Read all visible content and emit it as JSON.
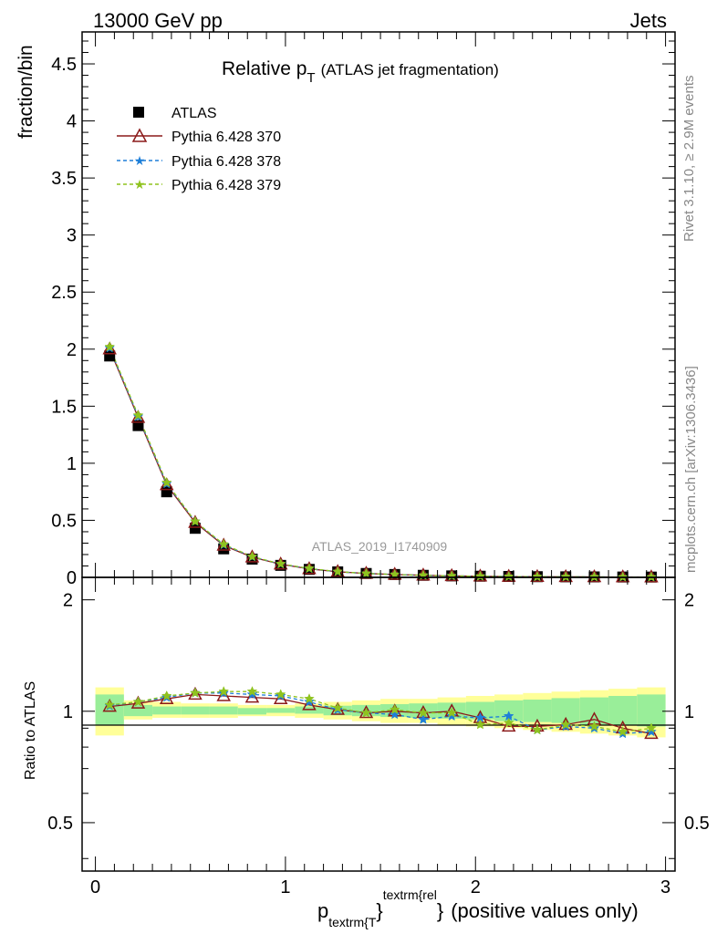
{
  "header": {
    "left": "13000 GeV pp",
    "right": "Jets"
  },
  "side_labels": {
    "rivet": "Rivet 3.1.10, ≥ 2.9M events",
    "mcplots": "mcplots.cern.ch [arXiv:1306.3436]"
  },
  "watermark": "ATLAS_2019_I1740909",
  "colors": {
    "data": "#000000",
    "mc370": "#8b1a1a",
    "mc378": "#1e7fd8",
    "mc379": "#8fc31f",
    "band_yellow": "#ffff99",
    "band_green": "#99ee99"
  },
  "chart_data": [
    {
      "type": "scatter",
      "title_main": "Relative p",
      "title_sub": "T",
      "title_rest": "(ATLAS jet fragmentation)",
      "ylabel": "fraction/bin",
      "xlim": [
        -0.07,
        3.05
      ],
      "ylim": [
        0,
        4.78
      ],
      "yticks": [
        0,
        0.5,
        1,
        1.5,
        2,
        2.5,
        3,
        3.5,
        4,
        4.5
      ],
      "ytick_labels": [
        "0",
        "0.5",
        "1",
        "1.5",
        "2",
        "2.5",
        "3",
        "3.5",
        "4",
        "4.5"
      ],
      "x": [
        0.075,
        0.225,
        0.375,
        0.525,
        0.675,
        0.825,
        0.975,
        1.125,
        1.275,
        1.425,
        1.575,
        1.725,
        1.875,
        2.025,
        2.175,
        2.325,
        2.475,
        2.625,
        2.775,
        2.925
      ],
      "legend": [
        {
          "label": "ATLAS",
          "key": "data"
        },
        {
          "label": "Pythia 6.428 370",
          "key": "mc370"
        },
        {
          "label": "Pythia 6.428 378",
          "key": "mc378"
        },
        {
          "label": "Pythia 6.428 379",
          "key": "mc379"
        }
      ],
      "series": [
        {
          "name": "ATLAS",
          "key": "data",
          "marker": "square",
          "values": [
            1.94,
            1.33,
            0.75,
            0.43,
            0.25,
            0.16,
            0.105,
            0.07,
            0.048,
            0.034,
            0.025,
            0.018,
            0.013,
            0.01,
            0.008,
            0.006,
            0.005,
            0.004,
            0.003,
            0.0025
          ]
        },
        {
          "name": "Pythia 6.428 370",
          "key": "mc370",
          "marker": "triangle",
          "dash": false,
          "values": [
            2.0,
            1.4,
            0.81,
            0.48,
            0.28,
            0.177,
            0.115,
            0.074,
            0.049,
            0.034,
            0.025,
            0.018,
            0.013,
            0.0096,
            0.0073,
            0.0055,
            0.0046,
            0.0038,
            0.0027,
            0.0022
          ]
        },
        {
          "name": "Pythia 6.428 378",
          "key": "mc378",
          "marker": "star",
          "dash": true,
          "values": [
            2.01,
            1.41,
            0.82,
            0.49,
            0.285,
            0.18,
            0.117,
            0.077,
            0.049,
            0.034,
            0.0245,
            0.0171,
            0.0126,
            0.0096,
            0.0078,
            0.0053,
            0.0045,
            0.0036,
            0.0026,
            0.0022
          ]
        },
        {
          "name": "Pythia 6.428 379",
          "key": "mc379",
          "marker": "star",
          "dash": true,
          "values": [
            2.02,
            1.42,
            0.83,
            0.49,
            0.29,
            0.182,
            0.118,
            0.078,
            0.05,
            0.034,
            0.025,
            0.0178,
            0.013,
            0.0092,
            0.0074,
            0.0053,
            0.0046,
            0.0036,
            0.0026,
            0.0023
          ]
        }
      ]
    },
    {
      "type": "line",
      "ylabel": "Ratio to ATLAS",
      "xlabel_main": "p",
      "xlabel_sub": "textrm{T",
      "xlabel_sup": "textrm{rel",
      "xlabel_brace1": "}",
      "xlabel_brace2": "}",
      "xlabel_rest": "(positive values only)",
      "xlim": [
        -0.07,
        3.05
      ],
      "ylim": [
        0.37,
        2.3
      ],
      "yscale": "log",
      "yticks": [
        0.5,
        1,
        2
      ],
      "ytick_labels": [
        "0.5",
        "1",
        "2"
      ],
      "xticks": [
        0,
        1,
        2,
        3
      ],
      "xtick_labels": [
        "0",
        "1",
        "2",
        "3"
      ],
      "bin_edges": [
        0,
        0.15,
        0.3,
        0.45,
        0.6,
        0.75,
        0.9,
        1.05,
        1.2,
        1.35,
        1.5,
        1.65,
        1.8,
        1.95,
        2.1,
        2.25,
        2.4,
        2.55,
        2.7,
        2.85,
        3.0
      ],
      "band_yellow": {
        "lo": [
          0.86,
          0.95,
          0.96,
          0.96,
          0.96,
          0.97,
          0.97,
          0.96,
          0.95,
          0.94,
          0.93,
          0.93,
          0.92,
          0.91,
          0.9,
          0.89,
          0.88,
          0.87,
          0.86,
          0.85
        ],
        "hi": [
          1.16,
          1.07,
          1.06,
          1.05,
          1.05,
          1.04,
          1.04,
          1.05,
          1.06,
          1.07,
          1.08,
          1.08,
          1.09,
          1.1,
          1.11,
          1.12,
          1.13,
          1.14,
          1.15,
          1.16
        ]
      },
      "band_green": {
        "lo": [
          0.92,
          0.97,
          0.98,
          0.98,
          0.98,
          0.98,
          0.99,
          0.985,
          0.975,
          0.97,
          0.965,
          0.96,
          0.955,
          0.95,
          0.94,
          0.935,
          0.93,
          0.92,
          0.915,
          0.91
        ],
        "hi": [
          1.11,
          1.04,
          1.03,
          1.03,
          1.03,
          1.02,
          1.02,
          1.03,
          1.035,
          1.04,
          1.045,
          1.05,
          1.055,
          1.06,
          1.07,
          1.075,
          1.085,
          1.09,
          1.1,
          1.11
        ]
      },
      "series": [
        {
          "name": "Pythia 6.428 370",
          "key": "mc370",
          "marker": "triangle",
          "dash": false,
          "values": [
            1.03,
            1.05,
            1.08,
            1.11,
            1.1,
            1.09,
            1.08,
            1.04,
            1.01,
            0.99,
            1.0,
            0.99,
            1.0,
            0.96,
            0.91,
            0.91,
            0.92,
            0.95,
            0.9,
            0.87
          ]
        },
        {
          "name": "Pythia 6.428 378",
          "key": "mc378",
          "marker": "star",
          "dash": true,
          "values": [
            1.035,
            1.06,
            1.09,
            1.12,
            1.12,
            1.11,
            1.1,
            1.06,
            1.01,
            0.99,
            0.98,
            0.95,
            0.97,
            0.96,
            0.97,
            0.89,
            0.91,
            0.9,
            0.87,
            0.88
          ]
        },
        {
          "name": "Pythia 6.428 379",
          "key": "mc379",
          "marker": "star",
          "dash": true,
          "values": [
            1.04,
            1.06,
            1.1,
            1.12,
            1.13,
            1.13,
            1.11,
            1.08,
            1.02,
            0.99,
            1.01,
            0.99,
            0.99,
            0.92,
            0.93,
            0.89,
            0.92,
            0.91,
            0.88,
            0.9
          ]
        }
      ]
    }
  ]
}
